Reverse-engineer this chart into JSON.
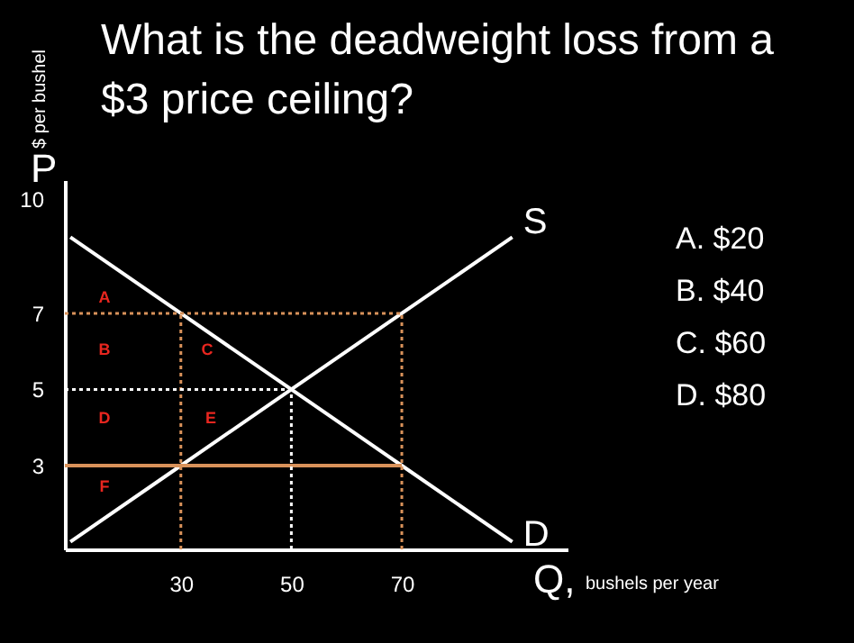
{
  "chart_data": {
    "type": "line",
    "title": "What is the deadweight loss from a $3 price ceiling?",
    "xlabel": "bushels per year",
    "ylabel": "$ per bushel",
    "xlim": [
      9,
      100
    ],
    "ylim": [
      0.8,
      10.5
    ],
    "xticks": [
      30,
      50,
      70
    ],
    "yticks": [
      3,
      5,
      7,
      10
    ],
    "grid": false,
    "marker": "none",
    "series": [
      {
        "name": "S",
        "color": "#ffffff",
        "line_style": "solid",
        "x": [
          10,
          30,
          50,
          70,
          90
        ],
        "values": [
          1,
          3,
          5,
          7,
          9
        ]
      },
      {
        "name": "D",
        "color": "#ffffff",
        "line_style": "solid",
        "x": [
          10,
          30,
          50,
          70,
          90
        ],
        "values": [
          9,
          7,
          5,
          3,
          1
        ]
      },
      {
        "color": "#d9925a",
        "line_style": "solid",
        "x": [
          9,
          70
        ],
        "values": [
          3,
          3
        ]
      },
      {
        "color": "#d9925a",
        "line_style": "dotted",
        "x": [
          9,
          70
        ],
        "values": [
          7,
          7
        ]
      },
      {
        "color": "#d9925a",
        "line_style": "dotted",
        "x": [
          30,
          30
        ],
        "values": [
          0.8,
          7
        ]
      },
      {
        "color": "#d9925a",
        "line_style": "dotted",
        "x": [
          70,
          70
        ],
        "values": [
          0.8,
          7
        ]
      },
      {
        "color": "#ffffff",
        "line_style": "dotted",
        "x": [
          9,
          50
        ],
        "values": [
          5,
          5
        ]
      },
      {
        "color": "#ffffff",
        "line_style": "dotted",
        "x": [
          50,
          50
        ],
        "values": [
          0.8,
          5
        ]
      }
    ],
    "annotations": [
      "A",
      "B",
      "C",
      "D",
      "E",
      "F",
      "P",
      "Q,",
      "A.  $20",
      "B.  $40",
      "C.  $60",
      "D.  $80"
    ]
  }
}
